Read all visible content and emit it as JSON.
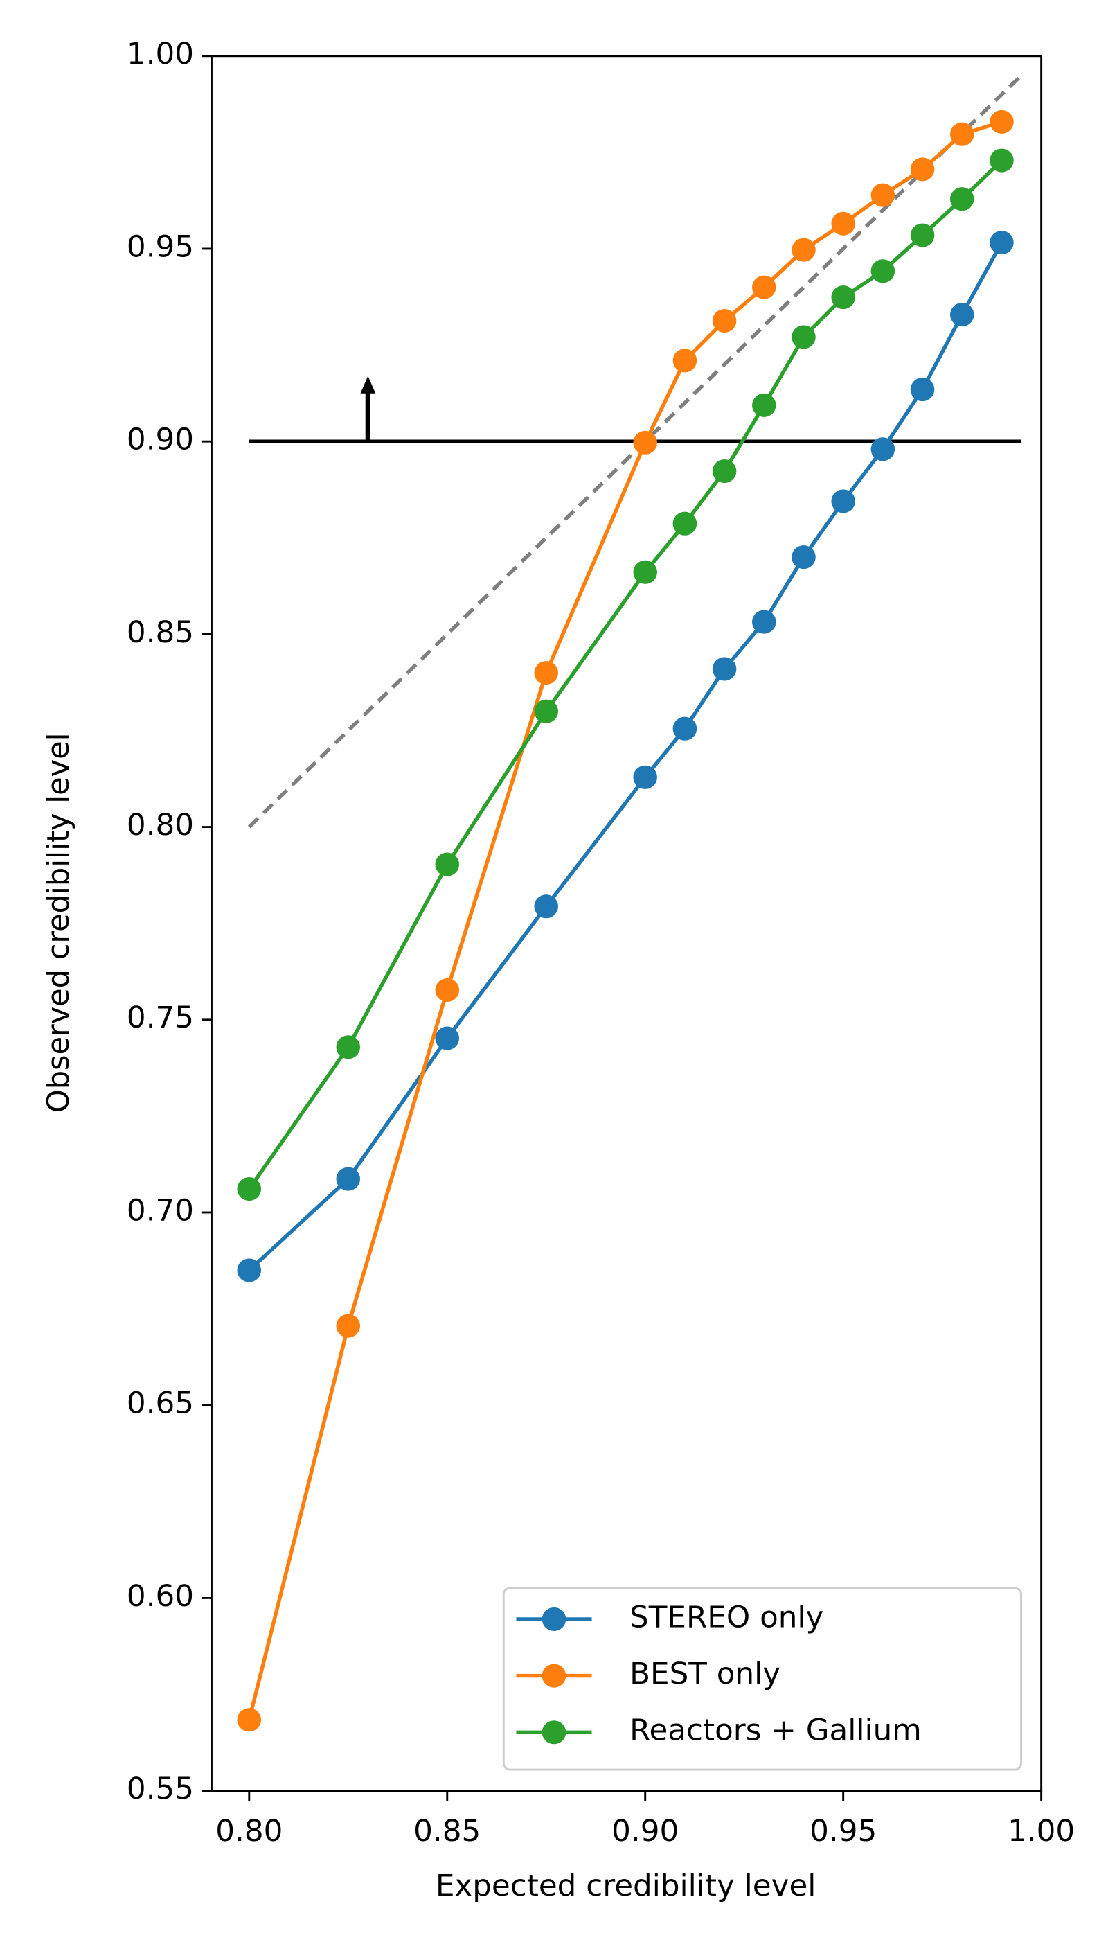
{
  "chart_data": {
    "type": "line",
    "xlabel": "Expected credibility level",
    "ylabel": "Observed credibility level",
    "xlim": [
      0.7905,
      1.0
    ],
    "ylim": [
      0.55,
      1.0
    ],
    "xticks": [
      {
        "value": 0.8,
        "label": "0.80"
      },
      0.85,
      {
        "value": 0.9,
        "label": "0.90"
      },
      0.95,
      {
        "value": 1.0,
        "label": "1.00"
      }
    ],
    "yticks": [
      0.55,
      {
        "value": 0.6,
        "label": "0.60"
      },
      0.65,
      {
        "value": 0.7,
        "label": "0.70"
      },
      0.75,
      {
        "value": 0.8,
        "label": "0.80"
      },
      0.85,
      {
        "value": 0.9,
        "label": "0.90"
      },
      0.95,
      {
        "value": 1.0,
        "label": "1.00"
      }
    ],
    "x": [
      0.8,
      0.825,
      0.85,
      0.875,
      0.9,
      0.91,
      0.92,
      0.93,
      0.94,
      0.95,
      0.96,
      0.97,
      0.98,
      0.99
    ],
    "series": [
      {
        "name": "STEREO only",
        "color": "#1f77b4",
        "values": [
          0.685,
          0.7087,
          0.7452,
          0.7794,
          0.8129,
          0.8255,
          0.841,
          0.8532,
          0.87,
          0.8845,
          0.898,
          0.9135,
          0.9329,
          0.9516
        ]
      },
      {
        "name": "BEST only",
        "color": "#ff7f0e",
        "values": [
          0.5684,
          0.6706,
          0.7577,
          0.84,
          0.8997,
          0.921,
          0.9313,
          0.94,
          0.9497,
          0.9565,
          0.9639,
          0.9706,
          0.9797,
          0.9829
        ]
      },
      {
        "name": "Reactors + Gallium",
        "color": "#2ca02c",
        "values": [
          0.7061,
          0.7429,
          0.7903,
          0.83,
          0.8661,
          0.8787,
          0.8923,
          0.9094,
          0.9271,
          0.9374,
          0.9442,
          0.9535,
          0.9629,
          0.9729
        ]
      }
    ],
    "reference_lines": [
      {
        "x": [
          0.8,
          0.995
        ],
        "y": [
          0.8,
          0.995
        ],
        "color": "#7f7f7f",
        "dashed": true
      },
      {
        "x": [
          0.8,
          0.995
        ],
        "y": [
          0.9,
          0.9
        ],
        "color": "#000000",
        "dashed": false
      }
    ],
    "arrow": {
      "x": 0.83,
      "y": [
        0.9,
        0.917
      ],
      "color": "#000000"
    },
    "legend": "lower right"
  }
}
